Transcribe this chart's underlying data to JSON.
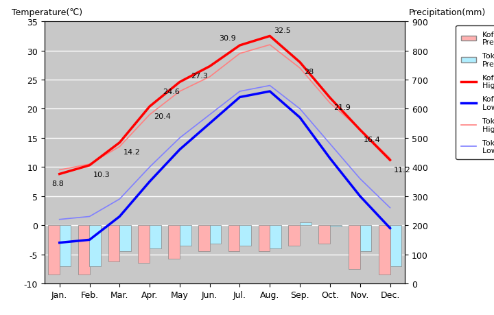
{
  "months": [
    "Jan.",
    "Feb.",
    "Mar.",
    "Apr.",
    "May",
    "Jun.",
    "Jul.",
    "Aug.",
    "Sep.",
    "Oct.",
    "Nov.",
    "Dec."
  ],
  "kofu_high_temp": [
    8.8,
    10.3,
    14.2,
    20.4,
    24.6,
    27.3,
    30.9,
    32.5,
    28.0,
    21.9,
    16.4,
    11.2
  ],
  "kofu_low_temp": [
    -3.0,
    -2.5,
    1.5,
    7.5,
    13.0,
    17.5,
    22.0,
    23.0,
    18.5,
    11.5,
    5.0,
    -0.5
  ],
  "tokyo_high_temp": [
    9.5,
    10.5,
    13.5,
    19.0,
    23.0,
    25.5,
    29.5,
    31.0,
    27.0,
    21.0,
    16.5,
    11.5
  ],
  "tokyo_low_temp": [
    1.0,
    1.5,
    4.5,
    10.0,
    15.0,
    19.0,
    23.0,
    24.0,
    20.0,
    14.0,
    8.0,
    3.0
  ],
  "kofu_prec_bar": [
    -8.5,
    -8.5,
    -6.2,
    -6.5,
    -5.8,
    -4.5,
    -4.5,
    -4.5,
    -3.5,
    -3.2,
    -7.5,
    -8.5
  ],
  "tokyo_prec_bar": [
    -7.0,
    -7.0,
    -4.5,
    -4.0,
    -3.5,
    -3.2,
    -3.5,
    -4.0,
    0.5,
    -0.2,
    -4.5,
    -7.0
  ],
  "temp_ylim": [
    -10,
    35
  ],
  "prec_ylim": [
    0,
    900
  ],
  "background_color": "#c8c8c8",
  "kofu_high_color": "#ff0000",
  "kofu_low_color": "#0000ff",
  "tokyo_high_color": "#ff8080",
  "tokyo_low_color": "#8080ff",
  "kofu_prec_color": "#ffb0b0",
  "tokyo_prec_color": "#b0eeff",
  "title_left": "Temperature(℃)",
  "title_right": "Precipitation(mm)",
  "grid_color": "#ffffff",
  "label_data": [
    [
      0,
      8.8,
      -8,
      -12
    ],
    [
      1,
      10.3,
      4,
      -12
    ],
    [
      2,
      14.2,
      4,
      -12
    ],
    [
      3,
      20.4,
      4,
      -12
    ],
    [
      4,
      24.6,
      -18,
      -12
    ],
    [
      5,
      27.3,
      -20,
      -12
    ],
    [
      6,
      30.9,
      -22,
      6
    ],
    [
      7,
      32.5,
      4,
      4
    ],
    [
      8,
      28.0,
      4,
      -12
    ],
    [
      9,
      21.9,
      4,
      -12
    ],
    [
      10,
      16.4,
      4,
      -12
    ],
    [
      11,
      11.2,
      4,
      -12
    ]
  ]
}
